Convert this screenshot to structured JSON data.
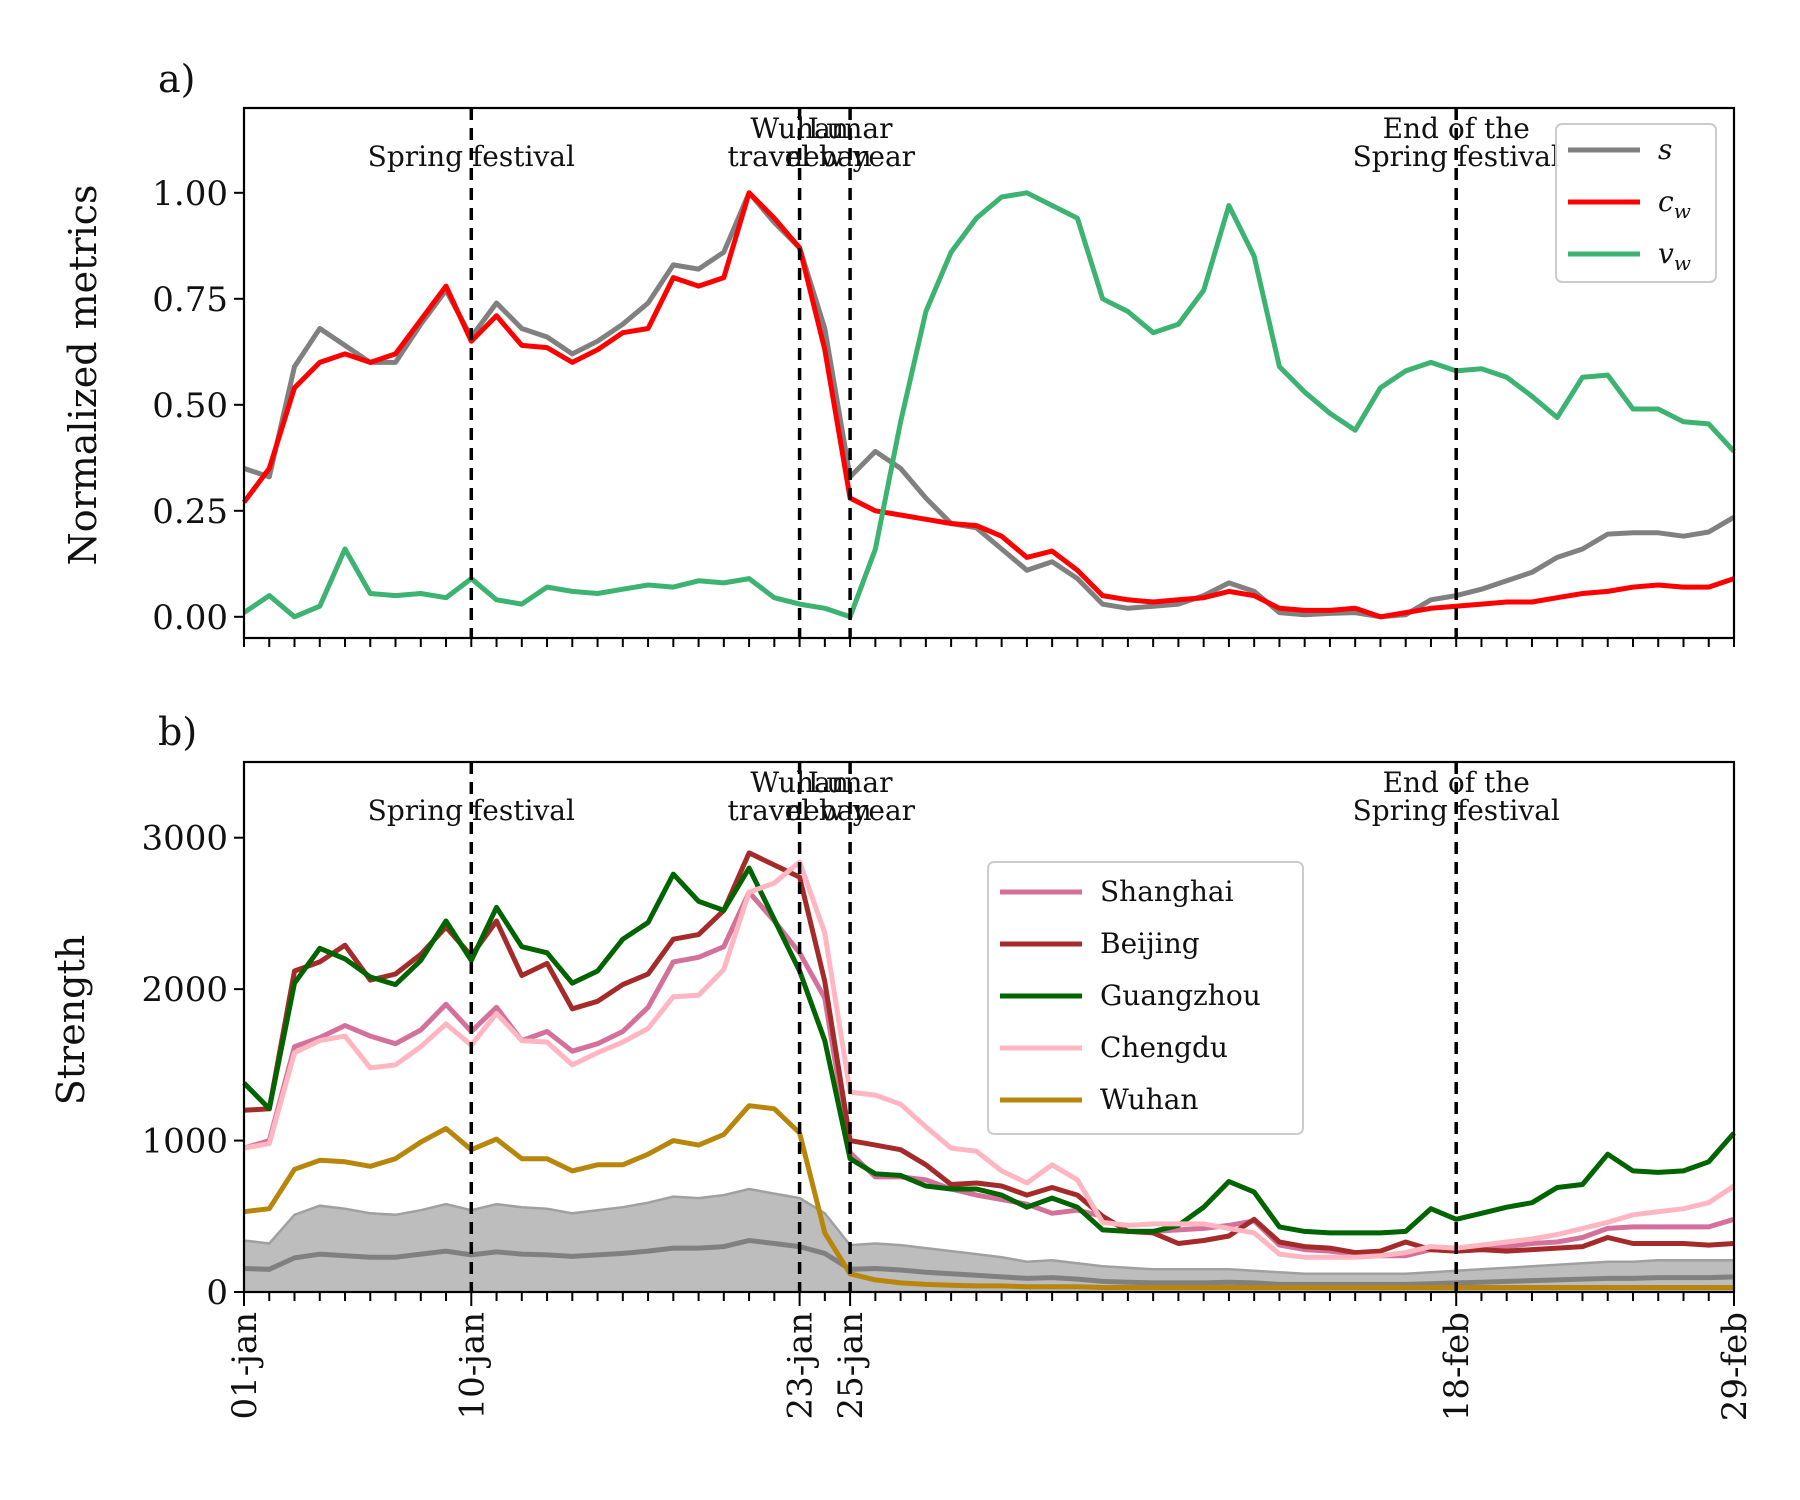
{
  "chart_data": [
    {
      "panel_label": "a)",
      "type": "line",
      "ylabel": "Normalized metrics",
      "xlabel": "",
      "ylim": [
        -0.05,
        1.2
      ],
      "xlim": [
        0,
        59
      ],
      "yticks": [
        0.0,
        0.25,
        0.5,
        0.75,
        1.0
      ],
      "ytick_labels": [
        "0.00",
        "0.25",
        "0.50",
        "0.75",
        "1.00"
      ],
      "x_tick_labels_shown": false,
      "grid": false,
      "legend_position": "top-right",
      "events": [
        {
          "x": 9,
          "label": [
            "Spring festival"
          ]
        },
        {
          "x": 22,
          "label": [
            "Wuhan",
            "travel ban"
          ]
        },
        {
          "x": 24,
          "label": [
            "Lunar",
            "new year"
          ]
        },
        {
          "x": 48,
          "label": [
            "End of the",
            "Spring festival"
          ]
        }
      ],
      "series": [
        {
          "name": "s",
          "sub": "",
          "color": "#808080",
          "values": [
            0.35,
            0.33,
            0.59,
            0.68,
            0.64,
            0.6,
            0.6,
            0.69,
            0.77,
            0.66,
            0.74,
            0.68,
            0.66,
            0.62,
            0.65,
            0.69,
            0.74,
            0.83,
            0.82,
            0.86,
            1.0,
            0.93,
            0.87,
            0.68,
            0.33,
            0.39,
            0.35,
            0.28,
            0.22,
            0.21,
            0.16,
            0.11,
            0.13,
            0.09,
            0.03,
            0.02,
            0.025,
            0.03,
            0.05,
            0.08,
            0.06,
            0.01,
            0.005,
            0.008,
            0.01,
            0.0,
            0.005,
            0.04,
            0.05,
            0.065,
            0.085,
            0.105,
            0.14,
            0.16,
            0.195,
            0.198,
            0.198,
            0.19,
            0.2,
            0.235
          ]
        },
        {
          "name": "c",
          "sub": "w",
          "color": "#ff0000",
          "values": [
            0.27,
            0.35,
            0.54,
            0.6,
            0.62,
            0.6,
            0.62,
            0.7,
            0.78,
            0.65,
            0.71,
            0.64,
            0.635,
            0.6,
            0.63,
            0.67,
            0.68,
            0.8,
            0.78,
            0.8,
            1.0,
            0.94,
            0.87,
            0.63,
            0.28,
            0.25,
            0.24,
            0.23,
            0.22,
            0.215,
            0.19,
            0.14,
            0.155,
            0.11,
            0.05,
            0.04,
            0.035,
            0.04,
            0.045,
            0.06,
            0.05,
            0.02,
            0.015,
            0.015,
            0.02,
            0.0,
            0.01,
            0.02,
            0.025,
            0.03,
            0.035,
            0.035,
            0.045,
            0.055,
            0.06,
            0.07,
            0.075,
            0.07,
            0.07,
            0.09
          ]
        },
        {
          "name": "v",
          "sub": "w",
          "color": "#3cb371",
          "values": [
            0.01,
            0.05,
            0.0,
            0.025,
            0.16,
            0.055,
            0.05,
            0.055,
            0.045,
            0.09,
            0.04,
            0.03,
            0.07,
            0.06,
            0.055,
            0.065,
            0.075,
            0.07,
            0.085,
            0.08,
            0.09,
            0.045,
            0.03,
            0.02,
            0.0,
            0.16,
            0.46,
            0.72,
            0.86,
            0.94,
            0.99,
            1.0,
            0.97,
            0.94,
            0.75,
            0.72,
            0.67,
            0.69,
            0.77,
            0.97,
            0.85,
            0.59,
            0.53,
            0.48,
            0.44,
            0.54,
            0.58,
            0.6,
            0.58,
            0.585,
            0.565,
            0.52,
            0.47,
            0.565,
            0.57,
            0.49,
            0.49,
            0.46,
            0.455,
            0.39
          ]
        }
      ]
    },
    {
      "panel_label": "b)",
      "type": "line",
      "ylabel": "Strength",
      "xlabel": "",
      "ylim": [
        0,
        3500
      ],
      "xlim": [
        0,
        59
      ],
      "yticks": [
        0,
        1000,
        2000,
        3000
      ],
      "ytick_labels": [
        "0",
        "1000",
        "2000",
        "3000"
      ],
      "x_major_ticks": [
        0,
        9,
        22,
        24,
        48,
        59
      ],
      "x_tick_labels": [
        "01-jan",
        "10-jan",
        "23-jan",
        "25-jan",
        "18-feb",
        "29-feb"
      ],
      "grid": false,
      "legend_position": "center",
      "events": [
        {
          "x": 9,
          "label": [
            "Spring festival"
          ]
        },
        {
          "x": 22,
          "label": [
            "Wuhan",
            "travel ban"
          ]
        },
        {
          "x": 24,
          "label": [
            "Lunar",
            "new year"
          ]
        },
        {
          "x": 48,
          "label": [
            "End of the",
            "Spring festival"
          ]
        }
      ],
      "band": {
        "color": "#bdbdbd",
        "edge_color": "#a0a0a0",
        "mean_color": "#808080",
        "upper": [
          340,
          320,
          510,
          570,
          550,
          520,
          510,
          540,
          580,
          540,
          580,
          560,
          550,
          520,
          540,
          560,
          590,
          630,
          620,
          640,
          680,
          650,
          620,
          520,
          310,
          320,
          310,
          290,
          270,
          250,
          230,
          200,
          210,
          190,
          170,
          160,
          150,
          150,
          150,
          150,
          140,
          130,
          120,
          120,
          120,
          120,
          120,
          130,
          140,
          150,
          160,
          170,
          180,
          190,
          200,
          200,
          210,
          210,
          210,
          210
        ],
        "lower": [
          0,
          0,
          0,
          0,
          0,
          0,
          0,
          0,
          0,
          0,
          0,
          0,
          0,
          0,
          0,
          0,
          0,
          0,
          0,
          0,
          0,
          0,
          0,
          0,
          0,
          0,
          0,
          0,
          0,
          0,
          0,
          0,
          0,
          0,
          0,
          0,
          0,
          0,
          0,
          0,
          0,
          0,
          0,
          0,
          0,
          0,
          0,
          0,
          0,
          0,
          0,
          0,
          0,
          0,
          0,
          0,
          0,
          0,
          0,
          0
        ],
        "mean": [
          155,
          150,
          225,
          250,
          240,
          230,
          230,
          250,
          270,
          245,
          265,
          250,
          245,
          235,
          245,
          255,
          270,
          290,
          290,
          300,
          340,
          320,
          300,
          255,
          150,
          155,
          145,
          130,
          120,
          110,
          100,
          90,
          95,
          85,
          70,
          65,
          60,
          60,
          60,
          65,
          60,
          50,
          50,
          50,
          50,
          50,
          50,
          55,
          60,
          65,
          70,
          75,
          80,
          85,
          90,
          90,
          95,
          95,
          95,
          100
        ]
      },
      "series": [
        {
          "name": "Shanghai",
          "color": "#d4719a",
          "values": [
            950,
            1000,
            1620,
            1680,
            1760,
            1690,
            1640,
            1730,
            1900,
            1720,
            1880,
            1660,
            1720,
            1590,
            1640,
            1720,
            1880,
            2180,
            2210,
            2280,
            2640,
            2450,
            2240,
            1940,
            920,
            760,
            760,
            740,
            680,
            640,
            610,
            580,
            520,
            540,
            500,
            400,
            400,
            410,
            420,
            440,
            470,
            310,
            280,
            270,
            250,
            240,
            240,
            280,
            270,
            280,
            300,
            320,
            330,
            360,
            420,
            430,
            430,
            430,
            430,
            480
          ]
        },
        {
          "name": "Beijing",
          "color": "#a52a2a",
          "values": [
            1200,
            1210,
            2120,
            2180,
            2290,
            2060,
            2100,
            2230,
            2410,
            2220,
            2450,
            2090,
            2170,
            1870,
            1920,
            2030,
            2100,
            2330,
            2360,
            2520,
            2900,
            2820,
            2740,
            2050,
            1000,
            970,
            940,
            840,
            710,
            720,
            700,
            640,
            690,
            640,
            500,
            400,
            390,
            320,
            340,
            370,
            480,
            330,
            300,
            290,
            260,
            270,
            330,
            280,
            270,
            280,
            270,
            280,
            290,
            300,
            360,
            320,
            320,
            320,
            310,
            320
          ]
        },
        {
          "name": "Guangzhou",
          "color": "#006400",
          "values": [
            1380,
            1210,
            2040,
            2270,
            2200,
            2080,
            2030,
            2190,
            2450,
            2190,
            2540,
            2280,
            2240,
            2040,
            2120,
            2330,
            2440,
            2760,
            2580,
            2520,
            2800,
            2460,
            2120,
            1660,
            880,
            780,
            770,
            700,
            680,
            680,
            640,
            560,
            620,
            560,
            410,
            400,
            400,
            440,
            560,
            730,
            660,
            430,
            400,
            390,
            390,
            390,
            400,
            550,
            480,
            520,
            560,
            590,
            690,
            710,
            910,
            800,
            790,
            800,
            860,
            1050
          ]
        },
        {
          "name": "Chengdu",
          "color": "#ffb6c1",
          "values": [
            950,
            980,
            1580,
            1660,
            1690,
            1480,
            1500,
            1620,
            1770,
            1630,
            1840,
            1660,
            1650,
            1500,
            1580,
            1650,
            1740,
            1950,
            1960,
            2130,
            2640,
            2700,
            2840,
            2370,
            1320,
            1300,
            1240,
            1090,
            950,
            930,
            800,
            720,
            840,
            740,
            460,
            440,
            450,
            450,
            450,
            420,
            390,
            250,
            230,
            230,
            230,
            240,
            260,
            300,
            290,
            310,
            330,
            350,
            380,
            420,
            460,
            510,
            530,
            550,
            590,
            700
          ]
        },
        {
          "name": "Wuhan",
          "color": "#b8860b",
          "values": [
            530,
            550,
            810,
            870,
            860,
            830,
            880,
            990,
            1080,
            940,
            1010,
            880,
            880,
            800,
            840,
            840,
            910,
            1000,
            970,
            1040,
            1230,
            1210,
            1050,
            390,
            120,
            80,
            60,
            50,
            45,
            40,
            40,
            35,
            35,
            35,
            30,
            30,
            30,
            30,
            30,
            30,
            30,
            30,
            30,
            30,
            30,
            30,
            30,
            30,
            30,
            30,
            30,
            30,
            30,
            30,
            30,
            30,
            30,
            30,
            30,
            30
          ]
        }
      ]
    }
  ]
}
